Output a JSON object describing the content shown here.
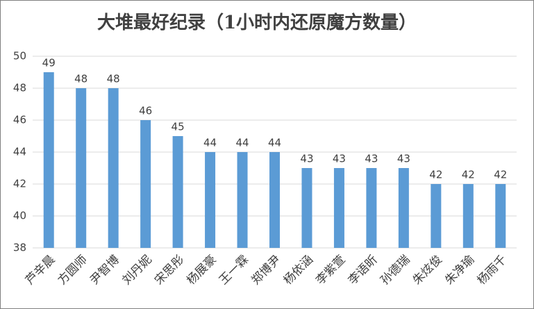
{
  "chart_data": {
    "type": "bar",
    "title": "大堆最好纪录（1小时内还原魔方数量）",
    "categories": [
      "芦辛晨",
      "方圆师",
      "尹智博",
      "刘丹妮",
      "宋思彤",
      "杨展豪",
      "王一霖",
      "郑博尹",
      "杨依涵",
      "李紫萱",
      "李语昕",
      "孙德瑞",
      "朱炫俊",
      "朱净瑜",
      "杨雨千"
    ],
    "values": [
      49,
      48,
      48,
      46,
      45,
      44,
      44,
      44,
      43,
      43,
      43,
      43,
      42,
      42,
      42
    ],
    "color": "#5b9bd5",
    "ylim": [
      38,
      50
    ],
    "yticks": [
      38,
      40,
      42,
      44,
      46,
      48,
      50
    ],
    "grid": true
  }
}
